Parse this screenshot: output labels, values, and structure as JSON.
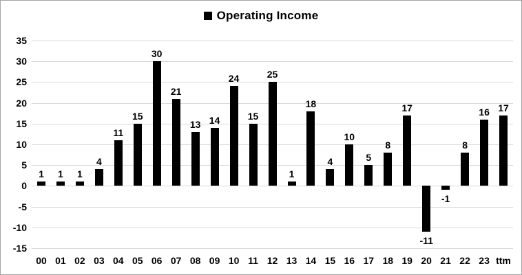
{
  "chart_data": {
    "type": "bar",
    "title": "Operating Income",
    "legend": {
      "label": "Operating Income",
      "marker": "black-square",
      "position": "top-center"
    },
    "categories": [
      "00",
      "01",
      "02",
      "03",
      "04",
      "05",
      "06",
      "07",
      "08",
      "09",
      "10",
      "11",
      "12",
      "13",
      "14",
      "15",
      "16",
      "17",
      "18",
      "19",
      "20",
      "21",
      "22",
      "23",
      "ttm"
    ],
    "values": [
      1,
      1,
      1,
      4,
      11,
      15,
      30,
      21,
      13,
      14,
      24,
      15,
      25,
      1,
      18,
      4,
      10,
      5,
      8,
      17,
      -11,
      -1,
      8,
      16,
      17
    ],
    "xlabel": "",
    "ylabel": "",
    "ylim": [
      -15,
      35
    ],
    "yticks": [
      35,
      30,
      25,
      20,
      15,
      10,
      5,
      0,
      -5,
      -10,
      -15
    ],
    "grid": true,
    "data_labels": true,
    "bar_color": "#000000",
    "gridline_color": "#d9d9d9",
    "background_color": "#ffffff",
    "border_color": "#a3a3a3",
    "text_color": "#000000"
  }
}
